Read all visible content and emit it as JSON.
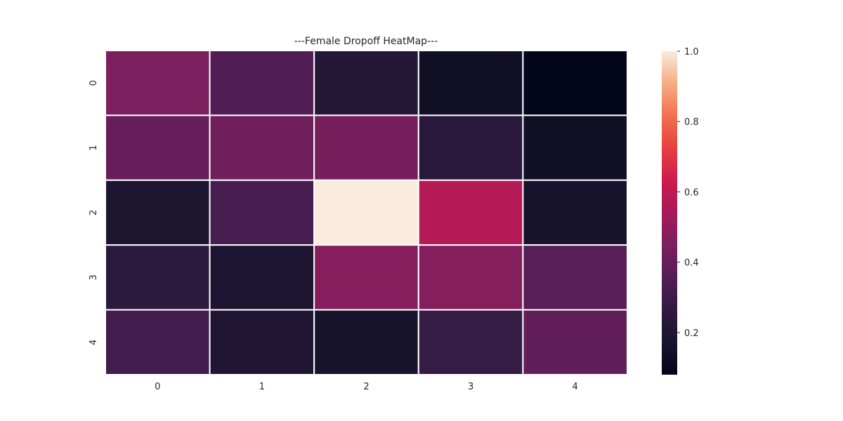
{
  "chart_data": {
    "type": "heatmap",
    "title": "---Female Dropoff HeatMap---",
    "xlabel": "",
    "ylabel": "",
    "x_categories": [
      "0",
      "1",
      "2",
      "3",
      "4"
    ],
    "y_categories": [
      "0",
      "1",
      "2",
      "3",
      "4"
    ],
    "values": [
      [
        0.45,
        0.35,
        0.22,
        0.14,
        0.08
      ],
      [
        0.4,
        0.42,
        0.44,
        0.24,
        0.14
      ],
      [
        0.18,
        0.33,
        1.0,
        0.58,
        0.17
      ],
      [
        0.25,
        0.19,
        0.47,
        0.47,
        0.37
      ],
      [
        0.31,
        0.2,
        0.17,
        0.28,
        0.39
      ]
    ],
    "colorbar": {
      "min": 0.08,
      "max": 1.0,
      "ticks": [
        0.2,
        0.4,
        0.6,
        0.8,
        1.0
      ],
      "tick_labels": [
        "0.2",
        "0.4",
        "0.6",
        "0.8",
        "1.0"
      ],
      "colormap": "rocket"
    },
    "grid": false,
    "cell_border_color": "#ffffff",
    "legend": "colorbar-right"
  }
}
